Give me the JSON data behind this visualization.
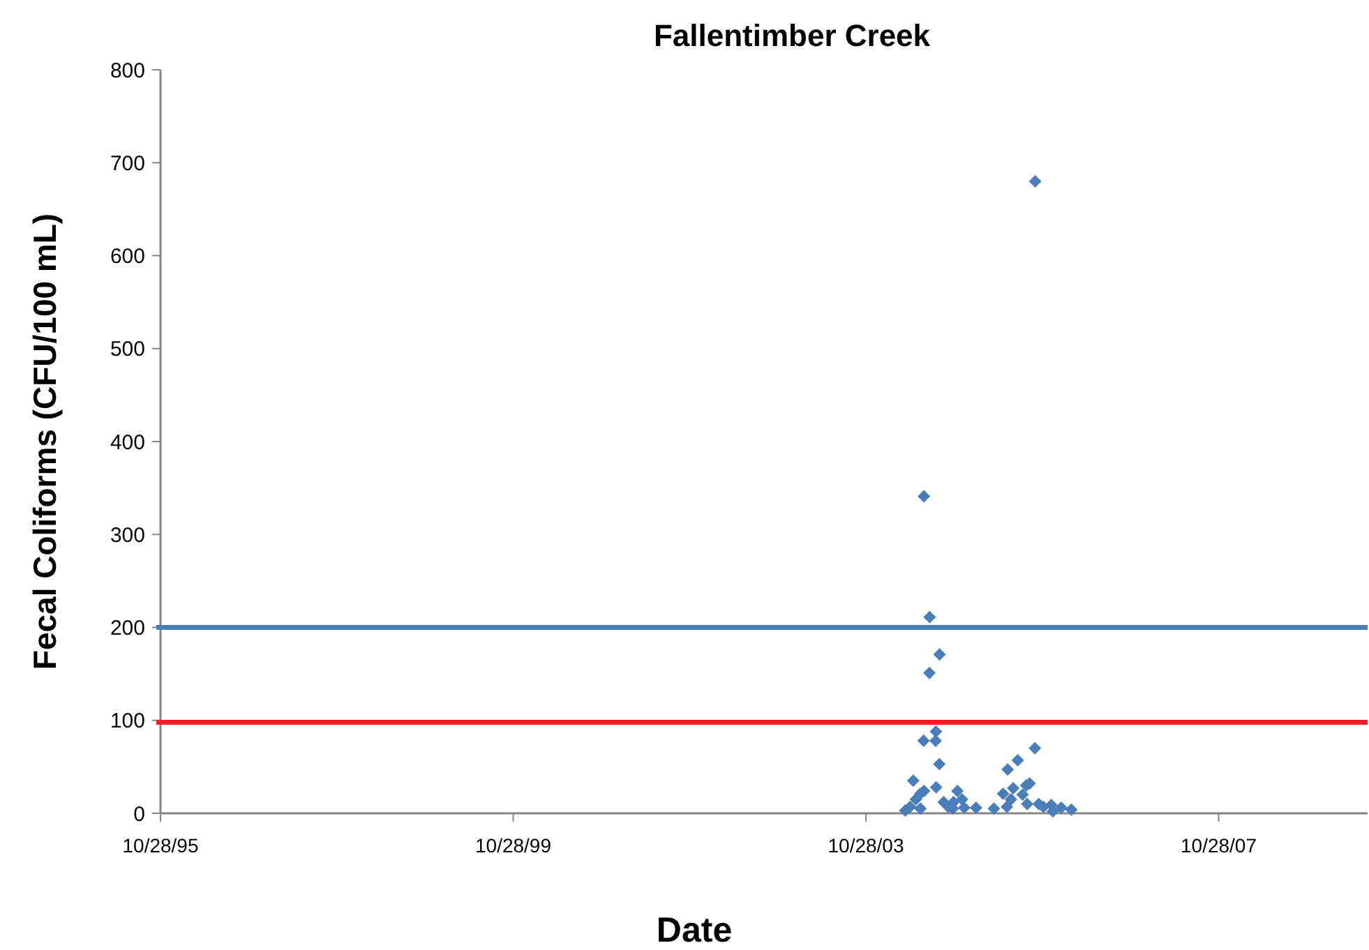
{
  "chart_data": {
    "type": "scatter",
    "title": "Fallentimber Creek",
    "xlabel": "Date",
    "ylabel": "Fecal Coliforms (CFU/100 mL)",
    "xlim": [
      "1995-10-28",
      "2009-07-06"
    ],
    "xticks": [
      {
        "value": "1995-10-28",
        "label": "10/28/95"
      },
      {
        "value": "1999-10-28",
        "label": "10/28/99"
      },
      {
        "value": "2003-10-28",
        "label": "10/28/03"
      },
      {
        "value": "2007-10-28",
        "label": "10/28/07"
      }
    ],
    "ylim": [
      0,
      800
    ],
    "yticks": [
      0,
      100,
      200,
      300,
      400,
      500,
      600,
      700,
      800
    ],
    "grid": false,
    "marker": "diamond",
    "ref_lines": [
      {
        "axis": "y",
        "value": 200,
        "color": "#4a7ebb"
      },
      {
        "axis": "y",
        "value": 98,
        "color": "#ee1c25"
      }
    ],
    "series": [
      {
        "color": "#4a7ebb",
        "x": [
          "2004-04-08",
          "2004-04-28",
          "2004-05-11",
          "2004-05-22",
          "2004-06-09",
          "2004-06-10",
          "2004-06-23",
          "2004-06-24",
          "2004-06-25",
          "2004-07-17",
          "2004-07-18",
          "2004-08-12",
          "2004-08-13",
          "2004-08-14",
          "2004-08-27",
          "2004-08-28",
          "2004-09-14",
          "2004-10-03",
          "2004-10-22",
          "2004-10-25",
          "2004-11-10",
          "2004-11-29",
          "2004-12-08",
          "2005-01-26",
          "2005-04-10",
          "2005-05-18",
          "2005-06-03",
          "2005-06-06",
          "2005-06-20",
          "2005-06-29",
          "2005-07-18",
          "2005-08-07",
          "2005-08-22",
          "2005-08-26",
          "2005-09-05",
          "2005-09-27",
          "2005-09-28",
          "2005-10-13",
          "2005-11-01",
          "2005-12-04",
          "2005-12-10",
          "2006-01-14",
          "2006-02-25"
        ],
        "values": [
          3,
          7,
          35,
          15,
          21,
          5,
          78,
          341,
          24,
          151,
          211,
          78,
          88,
          28,
          53,
          171,
          12,
          7,
          5,
          12,
          24,
          15,
          6,
          6,
          5,
          21,
          7,
          47,
          15,
          27,
          57,
          20,
          30,
          10,
          32,
          70,
          680,
          10,
          7,
          9,
          2,
          6,
          4
        ]
      }
    ]
  }
}
